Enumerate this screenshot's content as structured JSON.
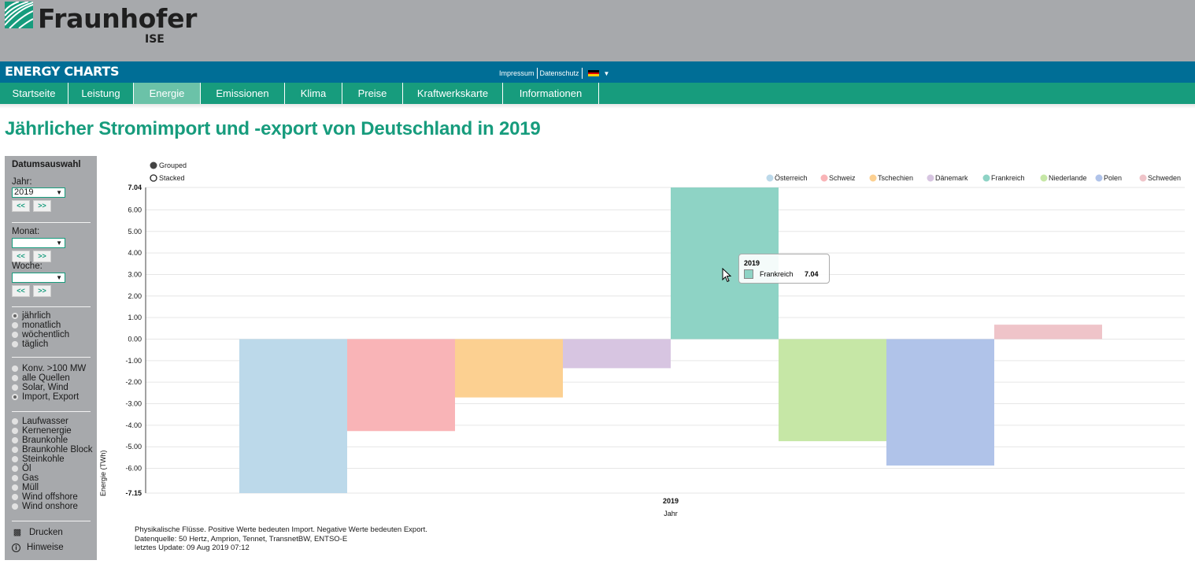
{
  "header": {
    "logo_name": "Fraunhofer",
    "logo_sub": "ISE",
    "brand": "ENERGY CHARTS",
    "links": [
      "Impressum",
      "Datenschutz"
    ],
    "language_flag": "de-flag-icon",
    "language_dropdown": "▼"
  },
  "nav": {
    "items": [
      {
        "label": "Startseite",
        "active": false
      },
      {
        "label": "Leistung",
        "active": false
      },
      {
        "label": "Energie",
        "active": true
      },
      {
        "label": "Emissionen",
        "active": false
      },
      {
        "label": "Klima",
        "active": false
      },
      {
        "label": "Preise",
        "active": false
      },
      {
        "label": "Kraftwerkskarte",
        "active": false
      },
      {
        "label": "Informationen",
        "active": false
      }
    ]
  },
  "page_title": "Jährlicher Stromimport und -export von Deutschland in 2019",
  "sidebar": {
    "title": "Datumsauswahl",
    "year_label": "Jahr:",
    "year_value": "2019",
    "month_label": "Monat:",
    "month_value": "",
    "week_label": "Woche:",
    "week_value": "",
    "prev_label": "<<",
    "next_label": ">>",
    "dropdown_arrow": "▼",
    "interval_options": [
      {
        "label": "jährlich",
        "selected": true
      },
      {
        "label": "monatlich",
        "selected": false
      },
      {
        "label": "wöchentlich",
        "selected": false
      },
      {
        "label": "täglich",
        "selected": false
      }
    ],
    "source_options": [
      {
        "label": "Konv. >100 MW",
        "selected": false
      },
      {
        "label": "alle Quellen",
        "selected": false
      },
      {
        "label": "Solar, Wind",
        "selected": false
      },
      {
        "label": "Import, Export",
        "selected": true
      }
    ],
    "type_options": [
      {
        "label": "Laufwasser"
      },
      {
        "label": "Kernenergie"
      },
      {
        "label": "Braunkohle"
      },
      {
        "label": "Braunkohle Block"
      },
      {
        "label": "Steinkohle"
      },
      {
        "label": "Öl"
      },
      {
        "label": "Gas"
      },
      {
        "label": "Müll"
      },
      {
        "label": "Wind offshore"
      },
      {
        "label": "Wind onshore"
      }
    ],
    "print_label": "Drucken",
    "notes_label": "Hinweise"
  },
  "chart_controls": {
    "grouped_label": "Grouped",
    "stacked_label": "Stacked",
    "mode": "grouped"
  },
  "tooltip": {
    "title": "2019",
    "series": "Frankreich",
    "value": "7.04"
  },
  "footnote": [
    "Physikalische Flüsse. Positive Werte bedeuten Import. Negative Werte bedeuten Export.",
    "Datenquelle: 50 Hertz, Amprion, Tennet, TransnetBW, ENTSO-E",
    "letztes Update: 09 Aug 2019 07:12"
  ],
  "chart_data": {
    "type": "bar",
    "title": "Jährlicher Stromimport und -export von Deutschland in 2019",
    "xlabel": "Jahr",
    "ylabel": "Energie (TWh)",
    "categories": [
      "2019"
    ],
    "ylim": [
      -7.15,
      7.04
    ],
    "yticks": [
      "7.04",
      "6.00",
      "5.00",
      "4.00",
      "3.00",
      "2.00",
      "1.00",
      "0.00",
      "-1.00",
      "-2.00",
      "-3.00",
      "-4.00",
      "-5.00",
      "-6.00",
      "-7.15"
    ],
    "ytick_values": [
      7.04,
      6,
      5,
      4,
      3,
      2,
      1,
      0,
      -1,
      -2,
      -3,
      -4,
      -5,
      -6,
      -7.15
    ],
    "grid": true,
    "legend_position": "top-right",
    "series": [
      {
        "name": "Österreich",
        "values": [
          -7.15
        ],
        "color": "#bcd9ea"
      },
      {
        "name": "Schweiz",
        "values": [
          -4.27
        ],
        "color": "#f9b4b7"
      },
      {
        "name": "Tschechien",
        "values": [
          -2.71
        ],
        "color": "#fcd091"
      },
      {
        "name": "Dänemark",
        "values": [
          -1.35
        ],
        "color": "#d7c5e1"
      },
      {
        "name": "Frankreich",
        "values": [
          7.04
        ],
        "color": "#8ed3c5"
      },
      {
        "name": "Niederlande",
        "values": [
          -4.74
        ],
        "color": "#c6e7a6"
      },
      {
        "name": "Polen",
        "values": [
          -5.87
        ],
        "color": "#b0c3e9"
      },
      {
        "name": "Schweden",
        "values": [
          0.67
        ],
        "color": "#efc4c9"
      }
    ]
  }
}
